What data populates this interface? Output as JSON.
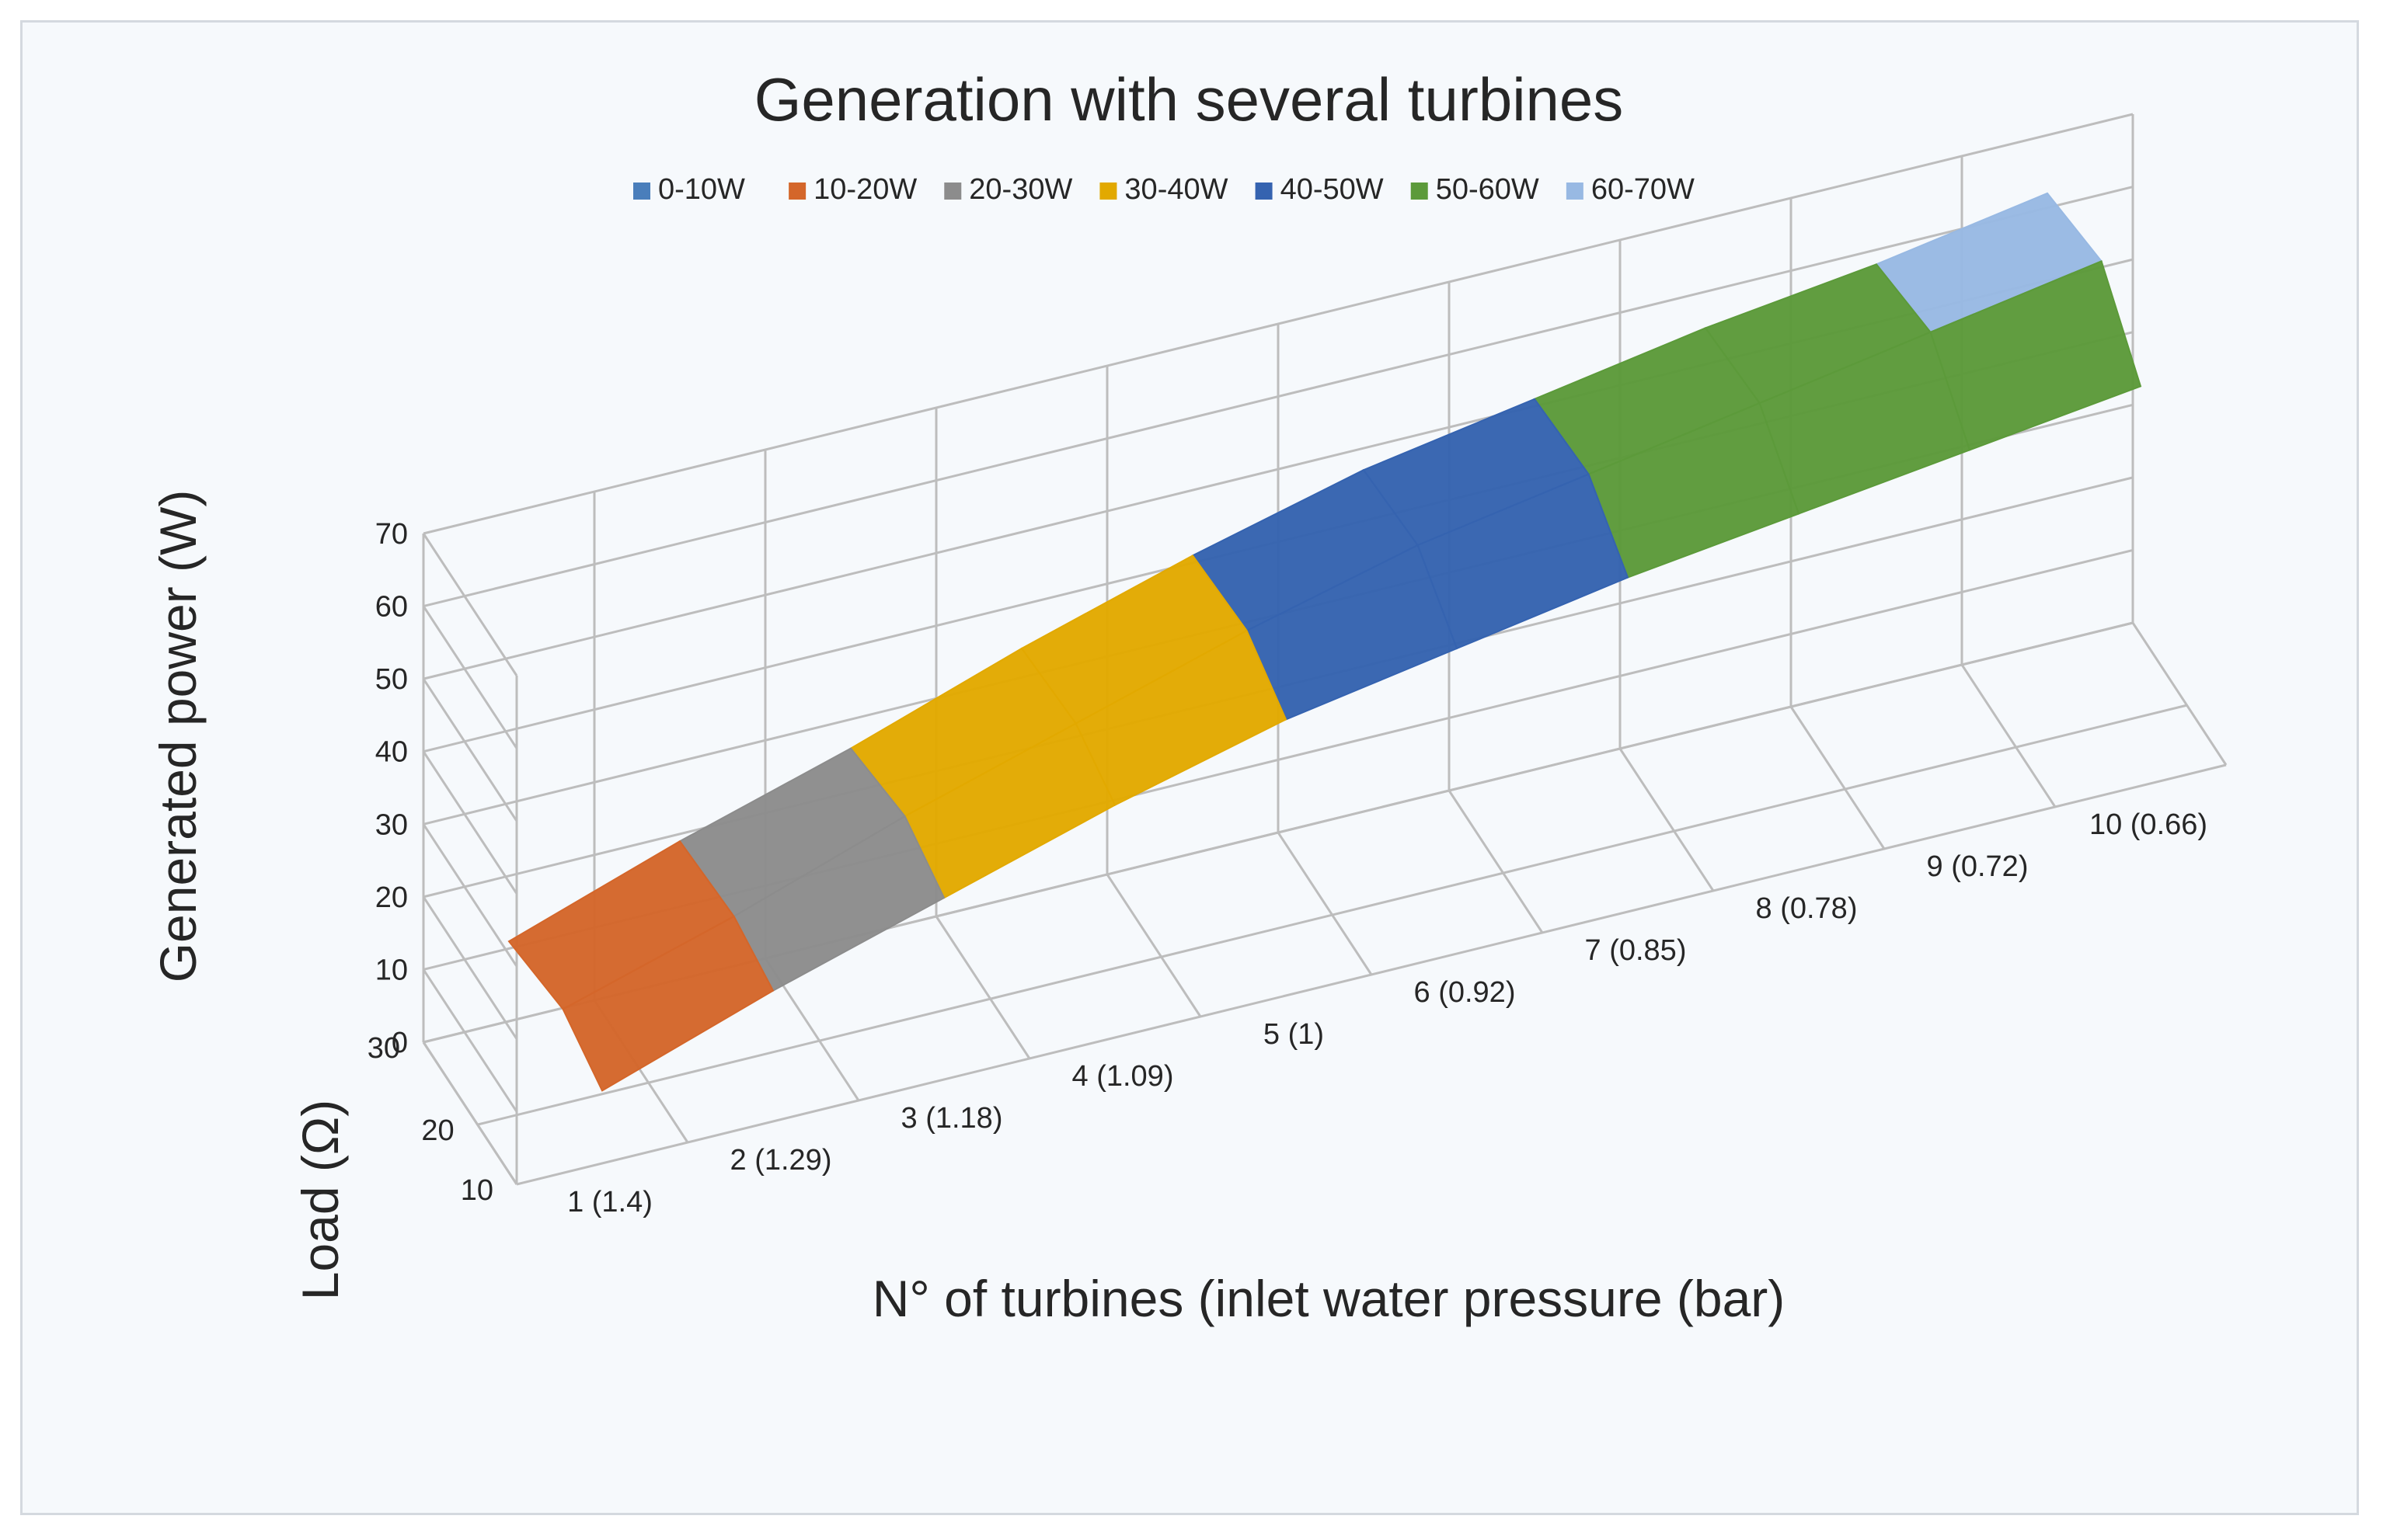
{
  "chart_data": {
    "type": "surface",
    "title": "Generation with several turbines",
    "xlabel": "N° of turbines (inlet water pressure (bar)",
    "ylabel": "Load (Ω)",
    "zlabel": "Generated power (W)",
    "x_categories": [
      "1 (1.4)",
      "2 (1.29)",
      "3 (1.18)",
      "4 (1.09)",
      "5 (1)",
      "6 (0.92)",
      "7 (0.85)",
      "8 (0.78)",
      "9 (0.72)",
      "10 (0.66)"
    ],
    "y_categories": [
      "10",
      "20",
      "30"
    ],
    "z_ticks": [
      "0",
      "10",
      "20",
      "30",
      "40",
      "50",
      "60",
      "70"
    ],
    "zlim": [
      0,
      70
    ],
    "legend_position": "top",
    "legend": [
      {
        "label": "0-10W",
        "color": "#4a7ebb"
      },
      {
        "label": "10-20W",
        "color": "#d4662a"
      },
      {
        "label": "20-30W",
        "color": "#8c8c8c"
      },
      {
        "label": "30-40W",
        "color": "#e2a900"
      },
      {
        "label": "40-50W",
        "color": "#3563b0"
      },
      {
        "label": "50-60W",
        "color": "#5c9a3a"
      },
      {
        "label": "60-70W",
        "color": "#98b9e3"
      }
    ],
    "values": [
      [
        10,
        18,
        25,
        32,
        38,
        42,
        46,
        49,
        52,
        55
      ],
      [
        13,
        20,
        28,
        35,
        42,
        48,
        52,
        56,
        60,
        64
      ],
      [
        11,
        19,
        26,
        34,
        41,
        47,
        51,
        55,
        58,
        62
      ]
    ]
  }
}
